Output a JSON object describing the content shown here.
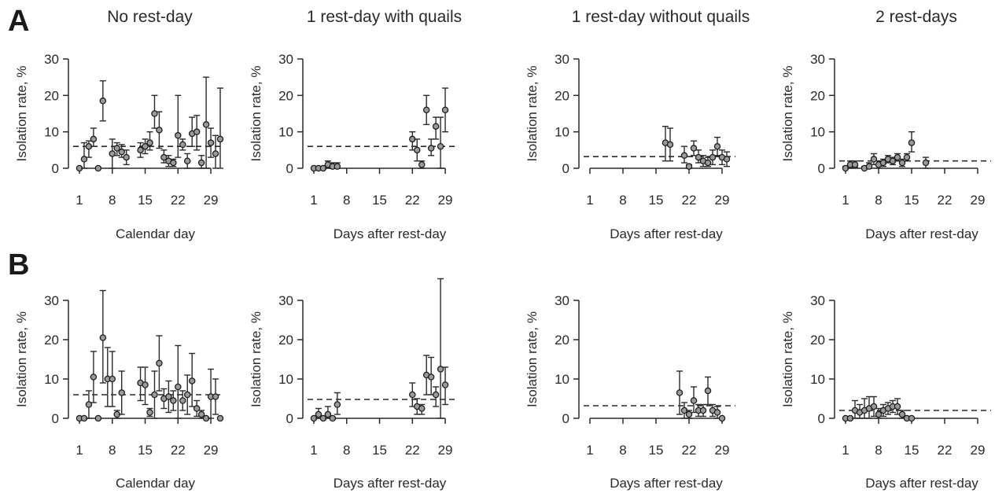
{
  "figure": {
    "row_labels": [
      "A",
      "B"
    ],
    "column_titles": [
      "No rest-day",
      "1 rest-day with quails",
      "1 rest-day without quails",
      "2 rest-days"
    ]
  },
  "chart_data": [
    {
      "type": "scatter",
      "panel": "A1",
      "title": "No rest-day",
      "xlabel": "Calendar day",
      "ylabel": "Isolation rate, %",
      "xticks": [
        1,
        8,
        15,
        22,
        29
      ],
      "yticks": [
        0,
        10,
        20,
        30
      ],
      "xlim": [
        1,
        31
      ],
      "ylim": [
        0,
        30
      ],
      "reference_line": 6.0,
      "points": [
        {
          "x": 1,
          "y": 0,
          "lo": 0,
          "hi": 0
        },
        {
          "x": 2,
          "y": 2.5,
          "lo": 0,
          "hi": 7
        },
        {
          "x": 3,
          "y": 6,
          "lo": 3,
          "hi": 7.5
        },
        {
          "x": 4,
          "y": 8,
          "lo": 6,
          "hi": 11
        },
        {
          "x": 5,
          "y": 0,
          "lo": 0,
          "hi": 0
        },
        {
          "x": 6,
          "y": 18.5,
          "lo": 13,
          "hi": 24
        },
        {
          "x": 8,
          "y": 4,
          "lo": 0,
          "hi": 8
        },
        {
          "x": 9,
          "y": 5.5,
          "lo": 3.5,
          "hi": 7
        },
        {
          "x": 10,
          "y": 4.5,
          "lo": 3,
          "hi": 6.5
        },
        {
          "x": 11,
          "y": 3,
          "lo": 1,
          "hi": 5
        },
        {
          "x": 14,
          "y": 5,
          "lo": 3,
          "hi": 7
        },
        {
          "x": 15,
          "y": 6,
          "lo": 4,
          "hi": 8
        },
        {
          "x": 16,
          "y": 7,
          "lo": 5,
          "hi": 10
        },
        {
          "x": 17,
          "y": 15,
          "lo": 11,
          "hi": 20
        },
        {
          "x": 18,
          "y": 10.5,
          "lo": 5.5,
          "hi": 15.5
        },
        {
          "x": 19,
          "y": 3,
          "lo": 1.5,
          "hi": 5
        },
        {
          "x": 20,
          "y": 2,
          "lo": 0.5,
          "hi": 3.5
        },
        {
          "x": 21,
          "y": 1.5,
          "lo": 0.5,
          "hi": 2.5
        },
        {
          "x": 22,
          "y": 9,
          "lo": 3,
          "hi": 20
        },
        {
          "x": 23,
          "y": 6.5,
          "lo": 5,
          "hi": 8
        },
        {
          "x": 24,
          "y": 2,
          "lo": 0,
          "hi": 4
        },
        {
          "x": 25,
          "y": 9.5,
          "lo": 6,
          "hi": 14
        },
        {
          "x": 26,
          "y": 10,
          "lo": 5,
          "hi": 14.5
        },
        {
          "x": 27,
          "y": 1.5,
          "lo": 0,
          "hi": 3.5
        },
        {
          "x": 28,
          "y": 12,
          "lo": 0,
          "hi": 25
        },
        {
          "x": 29,
          "y": 7,
          "lo": 3,
          "hi": 11
        },
        {
          "x": 30,
          "y": 4,
          "lo": 0,
          "hi": 9
        },
        {
          "x": 31,
          "y": 8,
          "lo": 0,
          "hi": 22
        }
      ]
    },
    {
      "type": "scatter",
      "panel": "A2",
      "title": "1 rest-day with quails",
      "xlabel": "Days after rest-day",
      "ylabel": "Isolation rate, %",
      "xticks": [
        1,
        8,
        15,
        22,
        29
      ],
      "yticks": [
        0,
        10,
        20,
        30
      ],
      "xlim": [
        1,
        31
      ],
      "ylim": [
        0,
        30
      ],
      "reference_line": 6.0,
      "points": [
        {
          "x": 1,
          "y": 0,
          "lo": 0,
          "hi": 0
        },
        {
          "x": 2,
          "y": 0,
          "lo": 0,
          "hi": 0
        },
        {
          "x": 3,
          "y": 0,
          "lo": 0,
          "hi": 0
        },
        {
          "x": 4,
          "y": 1,
          "lo": 0,
          "hi": 2
        },
        {
          "x": 5,
          "y": 0.5,
          "lo": 0,
          "hi": 1.5
        },
        {
          "x": 6,
          "y": 0.5,
          "lo": 0,
          "hi": 1.5
        },
        {
          "x": 22,
          "y": 8,
          "lo": 5,
          "hi": 10
        },
        {
          "x": 23,
          "y": 5,
          "lo": 2,
          "hi": 8
        },
        {
          "x": 24,
          "y": 1,
          "lo": 0,
          "hi": 2
        },
        {
          "x": 25,
          "y": 16,
          "lo": 12,
          "hi": 20
        },
        {
          "x": 26,
          "y": 5.5,
          "lo": 3.5,
          "hi": 8
        },
        {
          "x": 27,
          "y": 11.5,
          "lo": 8,
          "hi": 14
        },
        {
          "x": 28,
          "y": 6,
          "lo": 0,
          "hi": 14
        },
        {
          "x": 29,
          "y": 16,
          "lo": 10,
          "hi": 22
        }
      ]
    },
    {
      "type": "scatter",
      "panel": "A3",
      "title": "1 rest-day without quails",
      "xlabel": "Days after rest-day",
      "ylabel": "Isolation rate, %",
      "xticks": [
        1,
        8,
        15,
        22,
        29
      ],
      "yticks": [
        0,
        10,
        20,
        30
      ],
      "xlim": [
        1,
        31
      ],
      "ylim": [
        0,
        30
      ],
      "reference_line": 3.2,
      "points": [
        {
          "x": 17,
          "y": 7,
          "lo": 2,
          "hi": 11.5
        },
        {
          "x": 18,
          "y": 6.5,
          "lo": 2,
          "hi": 11
        },
        {
          "x": 21,
          "y": 3.5,
          "lo": 1.5,
          "hi": 6
        },
        {
          "x": 22,
          "y": 0.5,
          "lo": 0,
          "hi": 1
        },
        {
          "x": 23,
          "y": 5.5,
          "lo": 3.5,
          "hi": 7.5
        },
        {
          "x": 24,
          "y": 3,
          "lo": 1.5,
          "hi": 5
        },
        {
          "x": 25,
          "y": 2,
          "lo": 0.5,
          "hi": 3.5
        },
        {
          "x": 26,
          "y": 1.5,
          "lo": 0.5,
          "hi": 3
        },
        {
          "x": 27,
          "y": 3,
          "lo": 1,
          "hi": 5
        },
        {
          "x": 28,
          "y": 6,
          "lo": 3.5,
          "hi": 8.5
        },
        {
          "x": 29,
          "y": 3,
          "lo": 1,
          "hi": 5
        },
        {
          "x": 30,
          "y": 2.5,
          "lo": 0.5,
          "hi": 4.5
        }
      ]
    },
    {
      "type": "scatter",
      "panel": "A4",
      "title": "2 rest-days",
      "xlabel": "Days after rest-day",
      "ylabel": "Isolation rate, %",
      "xticks": [
        1,
        8,
        15,
        22,
        29
      ],
      "yticks": [
        0,
        10,
        20,
        30
      ],
      "xlim": [
        1,
        31
      ],
      "ylim": [
        0,
        30
      ],
      "reference_line": 2.0,
      "points": [
        {
          "x": 1,
          "y": 0,
          "lo": 0,
          "hi": 0.5
        },
        {
          "x": 2,
          "y": 1,
          "lo": 0,
          "hi": 2
        },
        {
          "x": 3,
          "y": 1,
          "lo": 0.3,
          "hi": 2
        },
        {
          "x": 5,
          "y": 0,
          "lo": 0,
          "hi": 0.5
        },
        {
          "x": 6,
          "y": 0.5,
          "lo": 0,
          "hi": 1.5
        },
        {
          "x": 7,
          "y": 2.5,
          "lo": 1,
          "hi": 4
        },
        {
          "x": 8,
          "y": 1,
          "lo": 0,
          "hi": 2
        },
        {
          "x": 9,
          "y": 1.5,
          "lo": 0.5,
          "hi": 2.5
        },
        {
          "x": 10,
          "y": 2.5,
          "lo": 1.5,
          "hi": 3.5
        },
        {
          "x": 11,
          "y": 2,
          "lo": 1,
          "hi": 3
        },
        {
          "x": 12,
          "y": 3,
          "lo": 2,
          "hi": 4
        },
        {
          "x": 13,
          "y": 1.5,
          "lo": 0.5,
          "hi": 2.5
        },
        {
          "x": 14,
          "y": 3,
          "lo": 2,
          "hi": 4
        },
        {
          "x": 15,
          "y": 7,
          "lo": 4.5,
          "hi": 10
        },
        {
          "x": 18,
          "y": 1.5,
          "lo": 0,
          "hi": 3
        }
      ]
    },
    {
      "type": "scatter",
      "panel": "B1",
      "title": "",
      "xlabel": "Calendar day",
      "ylabel": "Isolation rate, %",
      "xticks": [
        1,
        8,
        15,
        22,
        29
      ],
      "yticks": [
        0,
        10,
        20,
        30
      ],
      "xlim": [
        1,
        31
      ],
      "ylim": [
        0,
        32
      ],
      "reference_line": 6.0,
      "points": [
        {
          "x": 1,
          "y": 0,
          "lo": 0,
          "hi": 0
        },
        {
          "x": 2,
          "y": 0,
          "lo": 0,
          "hi": 0
        },
        {
          "x": 3,
          "y": 3.5,
          "lo": 0,
          "hi": 7
        },
        {
          "x": 4,
          "y": 10.5,
          "lo": 4,
          "hi": 17
        },
        {
          "x": 5,
          "y": 0,
          "lo": 0,
          "hi": 0
        },
        {
          "x": 6,
          "y": 20.5,
          "lo": 9,
          "hi": 32.5
        },
        {
          "x": 7,
          "y": 10,
          "lo": 3,
          "hi": 18
        },
        {
          "x": 8,
          "y": 10,
          "lo": 3,
          "hi": 17
        },
        {
          "x": 9,
          "y": 1,
          "lo": 0,
          "hi": 2
        },
        {
          "x": 10,
          "y": 6.5,
          "lo": 1,
          "hi": 12
        },
        {
          "x": 14,
          "y": 9,
          "lo": 4.5,
          "hi": 13
        },
        {
          "x": 15,
          "y": 8.5,
          "lo": 3.5,
          "hi": 13
        },
        {
          "x": 16,
          "y": 1.5,
          "lo": 0.5,
          "hi": 2.5
        },
        {
          "x": 17,
          "y": 6,
          "lo": 0,
          "hi": 12
        },
        {
          "x": 18,
          "y": 14,
          "lo": 7,
          "hi": 21
        },
        {
          "x": 19,
          "y": 5,
          "lo": 2.5,
          "hi": 7.5
        },
        {
          "x": 20,
          "y": 5.5,
          "lo": 1.5,
          "hi": 9.5
        },
        {
          "x": 21,
          "y": 4.5,
          "lo": 2,
          "hi": 7
        },
        {
          "x": 22,
          "y": 8,
          "lo": 0,
          "hi": 18.5
        },
        {
          "x": 23,
          "y": 4.5,
          "lo": 2,
          "hi": 7
        },
        {
          "x": 24,
          "y": 6,
          "lo": 1,
          "hi": 11
        },
        {
          "x": 25,
          "y": 9.5,
          "lo": 3,
          "hi": 16.5
        },
        {
          "x": 26,
          "y": 2.5,
          "lo": 0.5,
          "hi": 4.5
        },
        {
          "x": 27,
          "y": 1,
          "lo": 0,
          "hi": 2
        },
        {
          "x": 28,
          "y": 0,
          "lo": 0,
          "hi": 0
        },
        {
          "x": 29,
          "y": 5.5,
          "lo": 0,
          "hi": 12.5
        },
        {
          "x": 30,
          "y": 5.5,
          "lo": 1,
          "hi": 10
        },
        {
          "x": 31,
          "y": 0,
          "lo": 0,
          "hi": 0
        }
      ]
    },
    {
      "type": "scatter",
      "panel": "B2",
      "title": "",
      "xlabel": "Days after rest-day",
      "ylabel": "Isolation rate, %",
      "xticks": [
        1,
        8,
        15,
        22,
        29
      ],
      "yticks": [
        0,
        10,
        20,
        30
      ],
      "xlim": [
        1,
        31
      ],
      "ylim": [
        0,
        32
      ],
      "reference_line": 4.8,
      "points": [
        {
          "x": 1,
          "y": 0,
          "lo": 0,
          "hi": 0
        },
        {
          "x": 2,
          "y": 1,
          "lo": 0,
          "hi": 2.5
        },
        {
          "x": 3,
          "y": 0,
          "lo": 0,
          "hi": 0
        },
        {
          "x": 4,
          "y": 1,
          "lo": 0,
          "hi": 3
        },
        {
          "x": 5,
          "y": 0,
          "lo": 0,
          "hi": 0
        },
        {
          "x": 6,
          "y": 3.5,
          "lo": 1,
          "hi": 6.5
        },
        {
          "x": 22,
          "y": 6,
          "lo": 3,
          "hi": 9
        },
        {
          "x": 23,
          "y": 3,
          "lo": 1,
          "hi": 5
        },
        {
          "x": 24,
          "y": 2.5,
          "lo": 1,
          "hi": 3.5
        },
        {
          "x": 25,
          "y": 11,
          "lo": 6,
          "hi": 16
        },
        {
          "x": 26,
          "y": 10.5,
          "lo": 6,
          "hi": 15.5
        },
        {
          "x": 27,
          "y": 6,
          "lo": 3,
          "hi": 8
        },
        {
          "x": 28,
          "y": 12.5,
          "lo": 0,
          "hi": 35.5
        },
        {
          "x": 29,
          "y": 8.5,
          "lo": 3.5,
          "hi": 13
        }
      ]
    },
    {
      "type": "scatter",
      "panel": "B3",
      "title": "",
      "xlabel": "Days after rest-day",
      "ylabel": "Isolation rate, %",
      "xticks": [
        1,
        8,
        15,
        22,
        29
      ],
      "yticks": [
        0,
        10,
        20,
        30
      ],
      "xlim": [
        1,
        31
      ],
      "ylim": [
        0,
        32
      ],
      "reference_line": 3.2,
      "points": [
        {
          "x": 20,
          "y": 6.5,
          "lo": 1,
          "hi": 12
        },
        {
          "x": 21,
          "y": 2,
          "lo": 0,
          "hi": 4
        },
        {
          "x": 22,
          "y": 1,
          "lo": 0,
          "hi": 2
        },
        {
          "x": 23,
          "y": 4.5,
          "lo": 1.5,
          "hi": 8
        },
        {
          "x": 24,
          "y": 2,
          "lo": 0.5,
          "hi": 3.5
        },
        {
          "x": 25,
          "y": 2,
          "lo": 0.5,
          "hi": 3.5
        },
        {
          "x": 26,
          "y": 7,
          "lo": 3.5,
          "hi": 10.5
        },
        {
          "x": 27,
          "y": 2,
          "lo": 0.5,
          "hi": 3.5
        },
        {
          "x": 28,
          "y": 1.5,
          "lo": 0,
          "hi": 3
        },
        {
          "x": 29,
          "y": 0,
          "lo": 0,
          "hi": 0
        }
      ]
    },
    {
      "type": "scatter",
      "panel": "B4",
      "title": "",
      "xlabel": "Days after rest-day",
      "ylabel": "Isolation rate, %",
      "xticks": [
        1,
        8,
        15,
        22,
        29
      ],
      "yticks": [
        0,
        10,
        20,
        30
      ],
      "xlim": [
        1,
        31
      ],
      "ylim": [
        0,
        32
      ],
      "reference_line": 2.0,
      "points": [
        {
          "x": 1,
          "y": 0,
          "lo": 0,
          "hi": 0
        },
        {
          "x": 2,
          "y": 0,
          "lo": 0,
          "hi": 0
        },
        {
          "x": 3,
          "y": 2,
          "lo": 0,
          "hi": 4.5
        },
        {
          "x": 4,
          "y": 1.5,
          "lo": 0,
          "hi": 3.5
        },
        {
          "x": 5,
          "y": 2,
          "lo": 0,
          "hi": 5
        },
        {
          "x": 6,
          "y": 2.5,
          "lo": 0,
          "hi": 5.5
        },
        {
          "x": 7,
          "y": 3,
          "lo": 0.5,
          "hi": 5.5
        },
        {
          "x": 8,
          "y": 1,
          "lo": 0,
          "hi": 2.5
        },
        {
          "x": 9,
          "y": 2,
          "lo": 0.5,
          "hi": 3.5
        },
        {
          "x": 10,
          "y": 2.5,
          "lo": 1,
          "hi": 4
        },
        {
          "x": 11,
          "y": 3,
          "lo": 1.5,
          "hi": 4.5
        },
        {
          "x": 12,
          "y": 3,
          "lo": 1,
          "hi": 5
        },
        {
          "x": 13,
          "y": 1,
          "lo": 0,
          "hi": 2
        },
        {
          "x": 14,
          "y": 0,
          "lo": 0,
          "hi": 0
        },
        {
          "x": 15,
          "y": 0,
          "lo": 0,
          "hi": 0
        }
      ]
    }
  ]
}
